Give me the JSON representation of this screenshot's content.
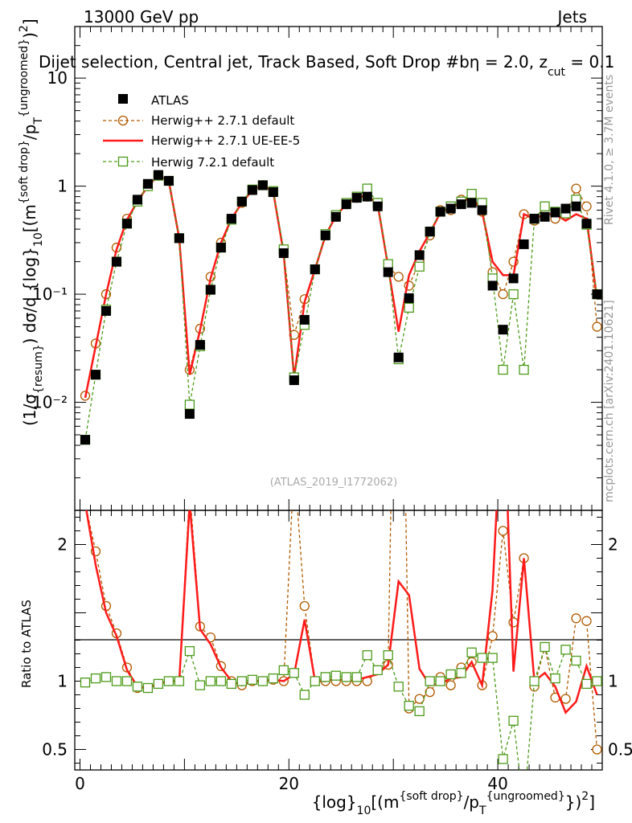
{
  "header": {
    "left": "13000 GeV pp",
    "right": "Jets",
    "title": "Dijet selection, Central jet, Track Based, Soft Drop #b",
    "title_cont": "η = 2.0, z",
    "title_sub": "cut",
    "title_end": " = 0.1"
  },
  "side": {
    "rivet": "Rivet 4.1.0, ≥ 3.7M events",
    "mcplots": "mcplots.cern.ch [arXiv:2401.10621]"
  },
  "watermark": "(ATLAS_2019_I1772062)",
  "ylabel_main": {
    "p1": "(1/σ",
    "s1": "{resum}",
    "p2": ") dσ/d {log}",
    "s2": "10",
    "p3": "[(m",
    "sup1": "{soft drop}",
    "p4": "/p",
    "s3": "T",
    "sup2": "{ungroomed}",
    "p5": ")",
    "sup3": "2",
    "p6": "]"
  },
  "ylabel_ratio": "Ratio to ATLAS",
  "xlabel": {
    "p1": "{log}",
    "s1": "10",
    "p2": "[(m",
    "sup1": "{soft drop}",
    "p3": "/p",
    "s2": "T",
    "sup2": "{ungroomed}",
    "p4": "})",
    "sup3": "2",
    "p5": "]"
  },
  "colors": {
    "data": "#000000",
    "h271": "#b05a00",
    "ueee5": "#ff1a1a",
    "h721": "#4d9a1a"
  },
  "chart_data": {
    "type": "scatter",
    "x_range": [
      -0.5,
      50
    ],
    "main_ylim_log": [
      0.001,
      30
    ],
    "ratio_ylim": [
      0.35,
      2.25
    ],
    "x_ticks": [
      "0",
      "20",
      "40"
    ],
    "main_y_ticks": [
      "10⁻²",
      "10⁻¹",
      "1",
      "10"
    ],
    "ratio_y_ticks": [
      "0.5",
      "1",
      "2"
    ],
    "legend": [
      "ATLAS",
      "Herwig++ 2.7.1 default",
      "Herwig++ 2.7.1 UE-EE-5",
      "Herwig 7.2.1 default"
    ],
    "x": [
      0.5,
      1.5,
      2.5,
      3.5,
      4.5,
      5.5,
      6.5,
      7.5,
      8.5,
      9.5,
      10.5,
      11.5,
      12.5,
      13.5,
      14.5,
      15.5,
      16.5,
      17.5,
      18.5,
      19.5,
      20.5,
      21.5,
      22.5,
      23.5,
      24.5,
      25.5,
      26.5,
      27.5,
      28.5,
      29.5,
      30.5,
      31.5,
      32.5,
      33.5,
      34.5,
      35.5,
      36.5,
      37.5,
      38.5,
      39.5,
      40.5,
      41.5,
      42.5,
      43.5,
      44.5,
      45.5,
      46.5,
      47.5,
      48.5,
      49.5
    ],
    "series": [
      {
        "name": "ATLAS",
        "values": [
          0.0045,
          0.018,
          0.07,
          0.2,
          0.45,
          0.75,
          1.05,
          1.27,
          1.12,
          0.33,
          0.0078,
          0.034,
          0.11,
          0.27,
          0.5,
          0.72,
          0.92,
          1.02,
          0.88,
          0.24,
          0.016,
          0.058,
          0.17,
          0.35,
          0.52,
          0.68,
          0.78,
          0.8,
          0.65,
          0.16,
          0.026,
          0.092,
          0.23,
          0.38,
          0.58,
          0.62,
          0.68,
          0.7,
          0.6,
          0.12,
          0.047,
          0.14,
          0.29,
          0.5,
          0.52,
          0.57,
          0.62,
          0.65,
          0.45,
          0.1
        ]
      },
      {
        "name": "Herwig++ 2.7.1 default",
        "values": [
          0.0115,
          0.035,
          0.1,
          0.27,
          0.5,
          0.72,
          1.0,
          1.25,
          1.12,
          0.33,
          0.02,
          0.048,
          0.145,
          0.3,
          0.5,
          0.7,
          0.92,
          1.02,
          0.89,
          0.24,
          0.042,
          0.09,
          0.17,
          0.35,
          0.52,
          0.68,
          0.78,
          0.8,
          0.7,
          0.18,
          0.145,
          0.12,
          0.2,
          0.35,
          0.6,
          0.6,
          0.75,
          0.8,
          0.58,
          0.16,
          0.1,
          0.2,
          0.55,
          0.48,
          0.65,
          0.5,
          0.54,
          0.95,
          0.65,
          0.05
        ]
      },
      {
        "name": "Herwig++ 2.7.1 UE-EE-5",
        "values": [
          0.011,
          0.033,
          0.1,
          0.26,
          0.49,
          0.72,
          1.0,
          1.25,
          1.12,
          0.33,
          0.018,
          0.047,
          0.14,
          0.3,
          0.5,
          0.7,
          0.92,
          1.02,
          0.89,
          0.24,
          0.017,
          0.085,
          0.17,
          0.35,
          0.53,
          0.68,
          0.79,
          0.82,
          0.68,
          0.18,
          0.045,
          0.15,
          0.25,
          0.37,
          0.57,
          0.63,
          0.7,
          0.8,
          0.58,
          0.2,
          0.15,
          0.15,
          0.55,
          0.5,
          0.55,
          0.55,
          0.48,
          0.55,
          0.5,
          0.09
        ]
      },
      {
        "name": "Herwig 7.2.1 default",
        "values": [
          0.0045,
          0.018,
          0.072,
          0.2,
          0.45,
          0.72,
          1.0,
          1.25,
          1.12,
          0.33,
          0.0095,
          0.033,
          0.11,
          0.27,
          0.49,
          0.72,
          0.93,
          1.02,
          0.9,
          0.26,
          0.017,
          0.052,
          0.17,
          0.36,
          0.54,
          0.7,
          0.8,
          0.95,
          0.7,
          0.19,
          0.025,
          0.075,
          0.18,
          0.38,
          0.58,
          0.65,
          0.72,
          0.85,
          0.7,
          0.14,
          0.02,
          0.1,
          0.02,
          0.5,
          0.65,
          0.58,
          0.56,
          0.75,
          0.44,
          0.1
        ]
      }
    ],
    "ratios": [
      {
        "name": "Herwig++ 2.7.1 default",
        "values": [
          2.3,
          1.95,
          1.55,
          1.35,
          1.1,
          0.95,
          0.95,
          0.98,
          1.0,
          1.0,
          2.4,
          1.4,
          1.32,
          1.11,
          1.0,
          0.97,
          1.0,
          1.0,
          1.01,
          1.0,
          2.6,
          1.55,
          1.0,
          1.0,
          1.0,
          1.0,
          1.0,
          1.0,
          1.08,
          1.12,
          5.5,
          0.8,
          0.87,
          0.92,
          1.03,
          0.97,
          1.1,
          1.14,
          0.97,
          1.33,
          2.1,
          1.43,
          1.9,
          0.96,
          1.25,
          0.88,
          0.87,
          1.46,
          1.44,
          0.5
        ]
      },
      {
        "name": "Herwig++ 2.7.1 UE-EE-5",
        "values": [
          2.3,
          1.85,
          1.5,
          1.33,
          1.08,
          0.96,
          0.95,
          0.98,
          1.0,
          1.0,
          2.3,
          1.38,
          1.27,
          1.1,
          1.0,
          0.97,
          1.0,
          1.0,
          1.01,
          1.0,
          1.05,
          1.45,
          1.0,
          1.0,
          1.02,
          1.0,
          1.01,
          1.03,
          1.05,
          1.12,
          1.73,
          1.63,
          1.09,
          0.97,
          0.98,
          1.02,
          1.03,
          1.14,
          0.97,
          1.67,
          3.2,
          1.07,
          1.9,
          1.0,
          1.06,
          0.96,
          0.77,
          0.85,
          1.11,
          0.9
        ]
      },
      {
        "name": "Herwig 7.2.1 default",
        "values": [
          0.99,
          1.02,
          1.03,
          1.0,
          1.0,
          0.96,
          0.95,
          0.98,
          1.0,
          1.0,
          1.22,
          0.97,
          1.0,
          1.0,
          0.98,
          1.0,
          1.01,
          1.0,
          1.02,
          1.08,
          1.06,
          0.9,
          1.0,
          1.03,
          1.04,
          1.03,
          1.03,
          1.19,
          1.08,
          1.19,
          0.96,
          0.82,
          0.78,
          1.0,
          1.0,
          1.05,
          1.06,
          1.21,
          1.17,
          1.17,
          0.43,
          0.71,
          0.07,
          1.0,
          1.25,
          1.02,
          1.23,
          1.15,
          0.98,
          1.0
        ]
      }
    ]
  }
}
